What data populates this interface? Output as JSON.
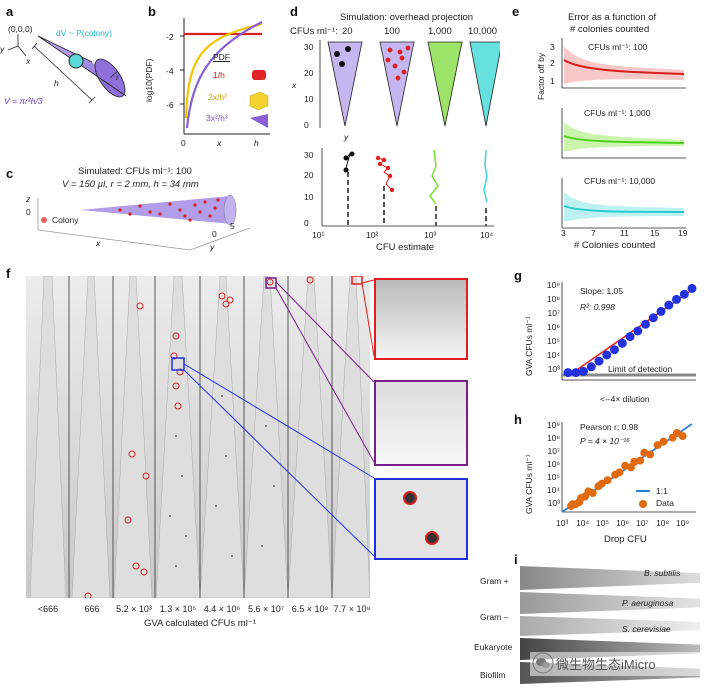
{
  "panels": {
    "a": {
      "label": "a",
      "origin": "(0,0,0)",
      "dv": "dV ~ P(colony)",
      "h": "h",
      "r": "r",
      "volume": "V = πr²h/3",
      "axis_y": "y",
      "axis_z": "z",
      "axis_x": "x"
    },
    "b": {
      "label": "b",
      "ylabel": "log10(PDF)",
      "xlabel_0": "0",
      "xlabel_x": "x",
      "xlabel_h": "h",
      "yticks": [
        "-2",
        "-4",
        "-6"
      ],
      "legend_title": "PDF",
      "legend": [
        "1/h",
        "2x/h²",
        "3x²/h³"
      ],
      "colors": {
        "red": "#d62020",
        "yellow": "#f2c500",
        "purple": "#8a5fd6"
      }
    },
    "c": {
      "label": "c",
      "title1": "Simulated: CFUs ml⁻¹: 100",
      "title2": "V = 150 µl, r = 2 mm, h = 34 mm",
      "legend": "Colony",
      "axis_z": "z",
      "axis_x": "x",
      "axis_y": "y",
      "ytick0": "0",
      "ytick5": "5",
      "ztick0": "0"
    },
    "d": {
      "label": "d",
      "title": "Simulation: overhead projection",
      "cfu_label": "CFUs ml⁻¹:",
      "cfus": [
        "20",
        "100",
        "1,000",
        "10,000"
      ],
      "xaxis": "x",
      "yaxis": "y",
      "yticks": [
        "30",
        "20",
        "10",
        "0"
      ],
      "xlabel_bottom": "CFU estimate",
      "xticks_bottom": [
        "10¹",
        "10²",
        "10³",
        "10⁴"
      ],
      "yticks_bottom": [
        "30",
        "20",
        "10",
        "0"
      ]
    },
    "e": {
      "label": "e",
      "title1": "Error as a function of",
      "title2": "# colonies counted",
      "ylabel": "Factor off by",
      "xlabel": "# Colonies counted",
      "subtitles": [
        "CFUs ml⁻¹: 100",
        "CFUs ml⁻¹: 1,000",
        "CFUs ml⁻¹: 10,000"
      ],
      "yticks": [
        "3",
        "2",
        "1"
      ],
      "xticks": [
        "3",
        "7",
        "11",
        "15",
        "19"
      ]
    },
    "f": {
      "label": "f",
      "strip_labels": [
        "<666",
        "666",
        "5.2 × 10³",
        "1.3 × 10⁵",
        "4.4 × 10⁶",
        "5.6 × 10⁷",
        "6.5 × 10⁸",
        "7.7 × 10⁹"
      ],
      "xlabel": "GVA calculated CFUs ml⁻¹"
    },
    "g": {
      "label": "g",
      "slope": "Slope: 1.05",
      "r2": "R²: 0.998",
      "lod": "Limit of detection",
      "xlabel": "<--4× dilution",
      "ylabel": "GVA CFUs ml⁻¹",
      "yticks": [
        "10⁹",
        "10⁸",
        "10⁷",
        "10⁶",
        "10⁵",
        "10⁴",
        "10³"
      ]
    },
    "h": {
      "label": "h",
      "pearson": "Pearson r: 0.98",
      "p": "P = 4 × 10⁻¹⁶",
      "legend_line": "1:1",
      "legend_data": "Data",
      "xlabel": "Drop CFU",
      "ylabel": "GVA CFUs ml⁻¹",
      "xticks": [
        "10³",
        "10⁴",
        "10⁵",
        "10⁶",
        "10⁷",
        "10⁸",
        "10⁹"
      ],
      "yticks": [
        "10⁹",
        "10⁸",
        "10⁷",
        "10⁶",
        "10⁵",
        "10⁴",
        "10³"
      ]
    },
    "i": {
      "label": "i",
      "rows": [
        {
          "group": "Gram +",
          "species": "B. subtilis"
        },
        {
          "group": "Gram –",
          "species": "P. aeruginosa"
        },
        {
          "group": "",
          "species": "S. cerevisiae"
        },
        {
          "group": "Eukaryote",
          "species": ""
        },
        {
          "group": "Biofilm",
          "species": ""
        }
      ]
    }
  },
  "watermark": "微生物生态iMicro",
  "chart_data": [
    {
      "type": "scatter",
      "panel": "g",
      "ylabel": "GVA CFUs ml⁻¹",
      "xlabel": "<--4× dilution",
      "log_y": true,
      "series": [
        {
          "values": [
            400,
            400,
            500,
            1200,
            3500,
            11000,
            30000,
            100000,
            350000,
            1000000,
            3500000,
            12000000,
            40000000,
            130000000,
            380000000,
            1000000000,
            3000000000
          ]
        }
      ],
      "ylim": [
        100,
        10000000000
      ]
    },
    {
      "type": "scatter",
      "panel": "h",
      "xlabel": "Drop CFU",
      "ylabel": "GVA CFUs ml⁻¹",
      "log_x": true,
      "log_y": true,
      "x": [
        1500,
        1800,
        2500,
        4000,
        5000,
        8000,
        12000,
        20000,
        40000,
        60000,
        120000,
        300000,
        500000,
        1000000,
        2000000,
        3000000,
        6000000,
        10000000,
        20000000,
        50000000,
        100000000,
        300000000,
        500000000,
        1000000000
      ],
      "y": [
        1500,
        2000,
        2000,
        3000,
        6000,
        8000,
        20000,
        15000,
        50000,
        80000,
        150000,
        400000,
        600000,
        2000000,
        1500000,
        4000000,
        5000000,
        20000000,
        15000000,
        80000000,
        150000000,
        300000000,
        700000000,
        400000000
      ],
      "xlim": [
        500,
        5000000000
      ],
      "ylim": [
        500,
        5000000000
      ]
    }
  ]
}
